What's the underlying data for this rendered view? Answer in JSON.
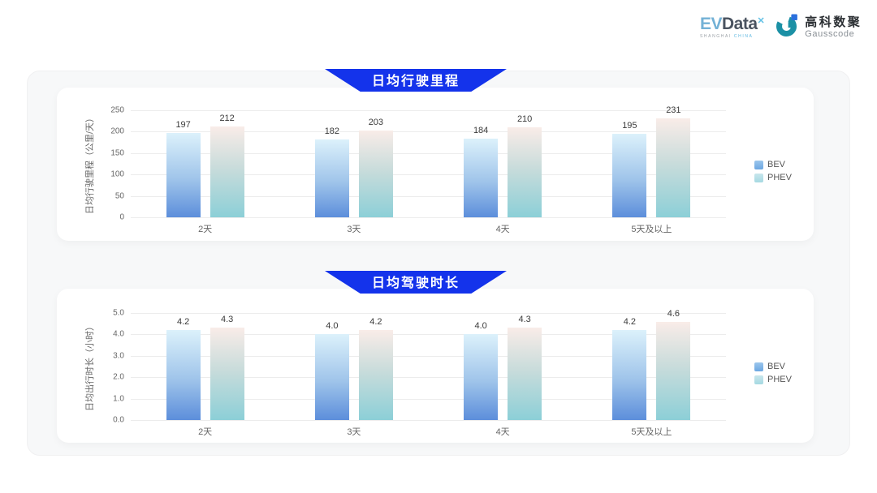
{
  "header": {
    "evdata": {
      "part1": "EV",
      "part2": "Data",
      "sup": "✕",
      "sub1": "SHANGHAI",
      "sub2": "CHINA"
    },
    "gausscode": {
      "cn": "高科数聚",
      "en": "Gausscode"
    }
  },
  "colors": {
    "banner_blue": "#1433eb",
    "bev_gradient_top": "#dcf1fb",
    "bev_gradient_bottom": "#5c8edb",
    "phev_gradient_top": "#f9ece8",
    "phev_gradient_bottom": "#8ccfd7",
    "legend_bev": "#6ca7e2",
    "legend_phev": "#a5d9e2",
    "gausscode_teal": "#1b90a5",
    "gausscode_blue": "#2a6fdd"
  },
  "chart_data": [
    {
      "type": "bar",
      "title": "日均行驶里程",
      "y_axis_title": "日均行驶里程（公里/天）",
      "xlabel": "",
      "ylabel": "日均行驶里程（公里/天）",
      "ylim": [
        0,
        250
      ],
      "y_ticks": [
        "250",
        "200",
        "150",
        "100",
        "50",
        "0"
      ],
      "categories": [
        "2天",
        "3天",
        "4天",
        "5天及以上"
      ],
      "series": [
        {
          "name": "BEV",
          "values": [
            197,
            182,
            184,
            195
          ],
          "labels": [
            "197",
            "182",
            "184",
            "195"
          ]
        },
        {
          "name": "PHEV",
          "values": [
            212,
            203,
            210,
            231
          ],
          "labels": [
            "212",
            "203",
            "210",
            "231"
          ]
        }
      ],
      "legend": [
        "BEV",
        "PHEV"
      ],
      "legend_position": "right",
      "grid": true
    },
    {
      "type": "bar",
      "title": "日均驾驶时长",
      "y_axis_title": "日均出行时长（小时）",
      "xlabel": "",
      "ylabel": "日均出行时长（小时）",
      "ylim": [
        0,
        5.0
      ],
      "y_ticks": [
        "5.0",
        "4.0",
        "3.0",
        "2.0",
        "1.0",
        "0.0"
      ],
      "categories": [
        "2天",
        "3天",
        "4天",
        "5天及以上"
      ],
      "series": [
        {
          "name": "BEV",
          "values": [
            4.2,
            4.0,
            4.0,
            4.2
          ],
          "labels": [
            "4.2",
            "4.0",
            "4.0",
            "4.2"
          ]
        },
        {
          "name": "PHEV",
          "values": [
            4.3,
            4.2,
            4.3,
            4.6
          ],
          "labels": [
            "4.3",
            "4.2",
            "4.3",
            "4.6"
          ]
        }
      ],
      "legend": [
        "BEV",
        "PHEV"
      ],
      "legend_position": "right",
      "grid": true
    }
  ]
}
